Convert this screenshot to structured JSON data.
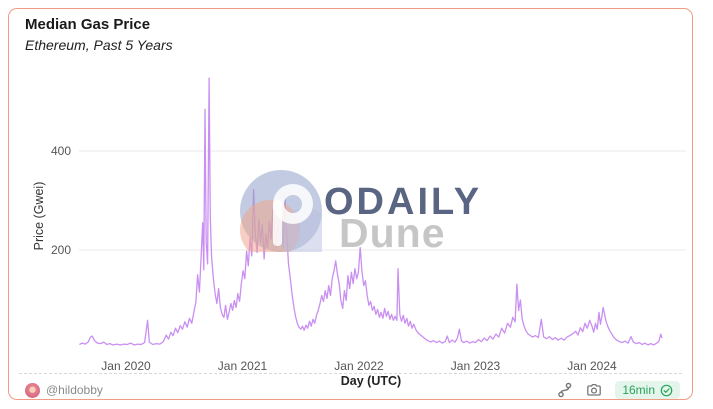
{
  "card": {
    "title": "Median Gas Price",
    "subtitle": "Ethereum, Past 5 Years"
  },
  "watermark": {
    "logo_text": "ODAILY",
    "dune_text": "Dune"
  },
  "footer": {
    "author": "@hildobby",
    "refresh_badge": "16min",
    "icons": [
      "fork-icon",
      "camera-icon",
      "check-circle-icon"
    ]
  },
  "colors": {
    "card_border": "#f09b83",
    "line": "#c98ff1",
    "grid": "#e9e9e9",
    "tick_text": "#555555",
    "title_text": "#1a1a1a",
    "footer_text": "#8a8a8a",
    "badge_bg": "#e4f6ec",
    "badge_text": "#27a25c",
    "watermark_navy": "#4b5878",
    "watermark_gray": "#8f8f8f",
    "logo_blue": "#8fa0c8",
    "logo_salmon": "#f0a890",
    "logo_lavender": "#b7bfe2"
  },
  "chart_data": {
    "type": "line",
    "title": "Median Gas Price",
    "subtitle": "Ethereum, Past 5 Years",
    "xlabel": "Day (UTC)",
    "ylabel": "Price (Gwei)",
    "x_ticks": [
      {
        "label": "Jan 2020",
        "year": 2020
      },
      {
        "label": "Jan 2021",
        "year": 2021
      },
      {
        "label": "Jan 2022",
        "year": 2022
      },
      {
        "label": "Jan 2023",
        "year": 2023
      },
      {
        "label": "Jan 2024",
        "year": 2024
      }
    ],
    "y_ticks": [
      400,
      200
    ],
    "ylim": [
      0,
      560
    ],
    "xlim_decimal_years": [
      2019.6,
      2024.62
    ],
    "grid": "horizontal-only",
    "legend": "none",
    "line_color": "#c98ff1",
    "series": [
      {
        "name": "Median Gas Price (Gwei)",
        "units": "Gwei",
        "points": [
          [
            2019.6,
            9
          ],
          [
            2019.625,
            12
          ],
          [
            2019.65,
            10
          ],
          [
            2019.675,
            14
          ],
          [
            2019.695,
            24
          ],
          [
            2019.71,
            26
          ],
          [
            2019.73,
            17
          ],
          [
            2019.755,
            12
          ],
          [
            2019.78,
            11
          ],
          [
            2019.81,
            14
          ],
          [
            2019.835,
            9
          ],
          [
            2019.86,
            11
          ],
          [
            2019.89,
            8
          ],
          [
            2019.92,
            10
          ],
          [
            2019.95,
            8
          ],
          [
            2019.98,
            10
          ],
          [
            2020.01,
            9
          ],
          [
            2020.04,
            12
          ],
          [
            2020.07,
            8
          ],
          [
            2020.1,
            10
          ],
          [
            2020.13,
            9
          ],
          [
            2020.16,
            13
          ],
          [
            2020.185,
            58
          ],
          [
            2020.2,
            14
          ],
          [
            2020.23,
            9
          ],
          [
            2020.26,
            11
          ],
          [
            2020.29,
            10
          ],
          [
            2020.32,
            15
          ],
          [
            2020.345,
            28
          ],
          [
            2020.365,
            20
          ],
          [
            2020.385,
            34
          ],
          [
            2020.405,
            27
          ],
          [
            2020.425,
            42
          ],
          [
            2020.445,
            33
          ],
          [
            2020.465,
            47
          ],
          [
            2020.485,
            40
          ],
          [
            2020.505,
            55
          ],
          [
            2020.525,
            44
          ],
          [
            2020.545,
            62
          ],
          [
            2020.565,
            52
          ],
          [
            2020.585,
            78
          ],
          [
            2020.6,
            95
          ],
          [
            2020.615,
            150
          ],
          [
            2020.63,
            115
          ],
          [
            2020.645,
            185
          ],
          [
            2020.658,
            255
          ],
          [
            2020.668,
            160
          ],
          [
            2020.678,
            484
          ],
          [
            2020.688,
            215
          ],
          [
            2020.7,
            172
          ],
          [
            2020.713,
            547
          ],
          [
            2020.724,
            265
          ],
          [
            2020.735,
            185
          ],
          [
            2020.75,
            142
          ],
          [
            2020.765,
            112
          ],
          [
            2020.78,
            92
          ],
          [
            2020.795,
            122
          ],
          [
            2020.81,
            84
          ],
          [
            2020.825,
            70
          ],
          [
            2020.84,
            64
          ],
          [
            2020.855,
            88
          ],
          [
            2020.87,
            60
          ],
          [
            2020.885,
            74
          ],
          [
            2020.9,
            92
          ],
          [
            2020.915,
            78
          ],
          [
            2020.93,
            98
          ],
          [
            2020.945,
            84
          ],
          [
            2020.96,
            112
          ],
          [
            2020.975,
            96
          ],
          [
            2020.99,
            132
          ],
          [
            2021.005,
            158
          ],
          [
            2021.02,
            142
          ],
          [
            2021.035,
            198
          ],
          [
            2021.05,
            168
          ],
          [
            2021.065,
            225
          ],
          [
            2021.08,
            188
          ],
          [
            2021.095,
            322
          ],
          [
            2021.11,
            232
          ],
          [
            2021.125,
            195
          ],
          [
            2021.14,
            262
          ],
          [
            2021.155,
            215
          ],
          [
            2021.17,
            252
          ],
          [
            2021.185,
            182
          ],
          [
            2021.2,
            232
          ],
          [
            2021.215,
            205
          ],
          [
            2021.23,
            258
          ],
          [
            2021.245,
            222
          ],
          [
            2021.26,
            282
          ],
          [
            2021.275,
            238
          ],
          [
            2021.29,
            206
          ],
          [
            2021.305,
            255
          ],
          [
            2021.32,
            218
          ],
          [
            2021.335,
            248
          ],
          [
            2021.35,
            205
          ],
          [
            2021.365,
            308
          ],
          [
            2021.38,
            228
          ],
          [
            2021.395,
            172
          ],
          [
            2021.41,
            142
          ],
          [
            2021.425,
            112
          ],
          [
            2021.44,
            86
          ],
          [
            2021.455,
            66
          ],
          [
            2021.47,
            52
          ],
          [
            2021.485,
            44
          ],
          [
            2021.5,
            40
          ],
          [
            2021.515,
            46
          ],
          [
            2021.53,
            38
          ],
          [
            2021.545,
            48
          ],
          [
            2021.56,
            42
          ],
          [
            2021.575,
            56
          ],
          [
            2021.59,
            46
          ],
          [
            2021.605,
            60
          ],
          [
            2021.62,
            52
          ],
          [
            2021.635,
            68
          ],
          [
            2021.65,
            78
          ],
          [
            2021.665,
            92
          ],
          [
            2021.68,
            108
          ],
          [
            2021.695,
            96
          ],
          [
            2021.71,
            118
          ],
          [
            2021.725,
            102
          ],
          [
            2021.74,
            128
          ],
          [
            2021.755,
            108
          ],
          [
            2021.77,
            142
          ],
          [
            2021.785,
            158
          ],
          [
            2021.8,
            178
          ],
          [
            2021.815,
            152
          ],
          [
            2021.83,
            132
          ],
          [
            2021.845,
            98
          ],
          [
            2021.86,
            82
          ],
          [
            2021.875,
            118
          ],
          [
            2021.89,
            98
          ],
          [
            2021.905,
            148
          ],
          [
            2021.92,
            122
          ],
          [
            2021.935,
            155
          ],
          [
            2021.95,
            132
          ],
          [
            2021.965,
            162
          ],
          [
            2021.98,
            142
          ],
          [
            2021.995,
            155
          ],
          [
            2022.01,
            205
          ],
          [
            2022.025,
            158
          ],
          [
            2022.04,
            128
          ],
          [
            2022.055,
            138
          ],
          [
            2022.07,
            108
          ],
          [
            2022.085,
            88
          ],
          [
            2022.1,
            96
          ],
          [
            2022.115,
            78
          ],
          [
            2022.13,
            86
          ],
          [
            2022.145,
            70
          ],
          [
            2022.16,
            80
          ],
          [
            2022.175,
            64
          ],
          [
            2022.19,
            74
          ],
          [
            2022.205,
            62
          ],
          [
            2022.22,
            82
          ],
          [
            2022.235,
            66
          ],
          [
            2022.25,
            76
          ],
          [
            2022.265,
            60
          ],
          [
            2022.28,
            70
          ],
          [
            2022.295,
            58
          ],
          [
            2022.31,
            66
          ],
          [
            2022.325,
            58
          ],
          [
            2022.335,
            162
          ],
          [
            2022.35,
            70
          ],
          [
            2022.365,
            56
          ],
          [
            2022.38,
            68
          ],
          [
            2022.395,
            52
          ],
          [
            2022.41,
            62
          ],
          [
            2022.425,
            46
          ],
          [
            2022.44,
            56
          ],
          [
            2022.455,
            42
          ],
          [
            2022.47,
            50
          ],
          [
            2022.49,
            38
          ],
          [
            2022.51,
            32
          ],
          [
            2022.53,
            28
          ],
          [
            2022.55,
            24
          ],
          [
            2022.57,
            20
          ],
          [
            2022.59,
            17
          ],
          [
            2022.615,
            14
          ],
          [
            2022.64,
            17
          ],
          [
            2022.665,
            13
          ],
          [
            2022.69,
            16
          ],
          [
            2022.715,
            12
          ],
          [
            2022.74,
            15
          ],
          [
            2022.758,
            26
          ],
          [
            2022.775,
            13
          ],
          [
            2022.8,
            18
          ],
          [
            2022.825,
            14
          ],
          [
            2022.845,
            22
          ],
          [
            2022.862,
            40
          ],
          [
            2022.88,
            16
          ],
          [
            2022.9,
            13
          ],
          [
            2022.925,
            16
          ],
          [
            2022.95,
            12
          ],
          [
            2022.975,
            15
          ],
          [
            2023.0,
            13
          ],
          [
            2023.025,
            19
          ],
          [
            2023.05,
            15
          ],
          [
            2023.075,
            22
          ],
          [
            2023.1,
            17
          ],
          [
            2023.125,
            26
          ],
          [
            2023.15,
            20
          ],
          [
            2023.175,
            30
          ],
          [
            2023.2,
            24
          ],
          [
            2023.225,
            42
          ],
          [
            2023.25,
            32
          ],
          [
            2023.275,
            52
          ],
          [
            2023.3,
            44
          ],
          [
            2023.32,
            64
          ],
          [
            2023.34,
            55
          ],
          [
            2023.355,
            131
          ],
          [
            2023.37,
            78
          ],
          [
            2023.385,
            99
          ],
          [
            2023.4,
            62
          ],
          [
            2023.415,
            48
          ],
          [
            2023.43,
            38
          ],
          [
            2023.45,
            31
          ],
          [
            2023.47,
            27
          ],
          [
            2023.49,
            24
          ],
          [
            2023.515,
            27
          ],
          [
            2023.54,
            23
          ],
          [
            2023.565,
            60
          ],
          [
            2023.585,
            24
          ],
          [
            2023.61,
            21
          ],
          [
            2023.635,
            25
          ],
          [
            2023.66,
            19
          ],
          [
            2023.685,
            23
          ],
          [
            2023.71,
            18
          ],
          [
            2023.735,
            22
          ],
          [
            2023.76,
            18
          ],
          [
            2023.785,
            24
          ],
          [
            2023.81,
            27
          ],
          [
            2023.835,
            31
          ],
          [
            2023.86,
            36
          ],
          [
            2023.88,
            28
          ],
          [
            2023.9,
            43
          ],
          [
            2023.92,
            35
          ],
          [
            2023.94,
            52
          ],
          [
            2023.96,
            42
          ],
          [
            2023.98,
            58
          ],
          [
            2024.0,
            46
          ],
          [
            2024.015,
            34
          ],
          [
            2024.03,
            52
          ],
          [
            2024.045,
            40
          ],
          [
            2024.06,
            74
          ],
          [
            2024.072,
            50
          ],
          [
            2024.085,
            66
          ],
          [
            2024.095,
            84
          ],
          [
            2024.108,
            70
          ],
          [
            2024.12,
            56
          ],
          [
            2024.135,
            46
          ],
          [
            2024.15,
            38
          ],
          [
            2024.17,
            30
          ],
          [
            2024.19,
            23
          ],
          [
            2024.21,
            18
          ],
          [
            2024.235,
            15
          ],
          [
            2024.26,
            13
          ],
          [
            2024.285,
            16
          ],
          [
            2024.31,
            12
          ],
          [
            2024.335,
            25
          ],
          [
            2024.355,
            14
          ],
          [
            2024.38,
            11
          ],
          [
            2024.405,
            13
          ],
          [
            2024.43,
            9
          ],
          [
            2024.455,
            12
          ],
          [
            2024.48,
            8
          ],
          [
            2024.505,
            11
          ],
          [
            2024.53,
            8
          ],
          [
            2024.555,
            12
          ],
          [
            2024.575,
            16
          ],
          [
            2024.59,
            30
          ],
          [
            2024.6,
            22
          ]
        ]
      }
    ]
  }
}
